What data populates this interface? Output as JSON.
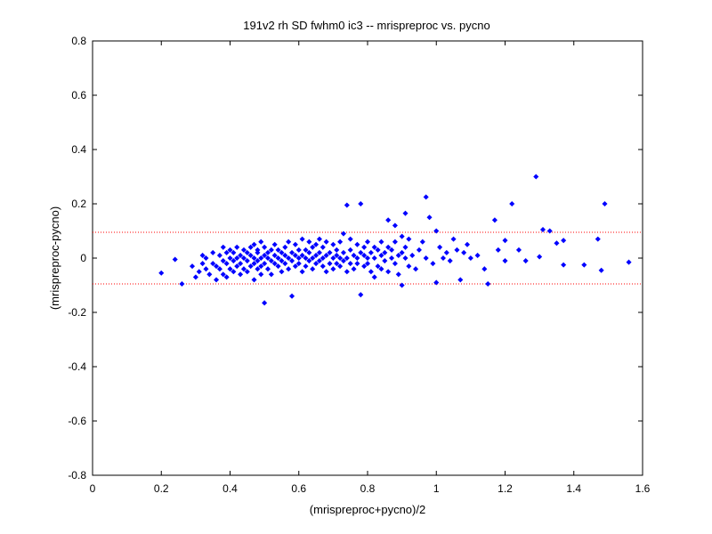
{
  "chart_data": {
    "type": "scatter",
    "title": "191v2 rh SD fwhm0 ic3 -- mrispreproc vs. pycno",
    "xlabel": "(mrispreproc+pycno)/2",
    "ylabel": "(mrispreproc-pycno)",
    "xlim": [
      0,
      1.6
    ],
    "ylim": [
      -0.8,
      0.8
    ],
    "xticks": [
      "0",
      "0.2",
      "0.4",
      "0.6",
      "0.8",
      "1",
      "1.2",
      "1.4",
      "1.6"
    ],
    "yticks": [
      "0.8",
      "0.6",
      "0.4",
      "0.2",
      "0",
      "-0.2",
      "-0.4",
      "-0.6",
      "-0.8"
    ],
    "grid": false,
    "legend": "none",
    "reference_lines": [
      {
        "y": 0.095,
        "style": "dotted",
        "color": "#ff0000"
      },
      {
        "y": -0.095,
        "style": "dotted",
        "color": "#ff0000"
      }
    ],
    "series": [
      {
        "marker": "diamond",
        "color": "#0000ff",
        "points": [
          [
            0.2,
            -0.055
          ],
          [
            0.24,
            -0.005
          ],
          [
            0.26,
            -0.095
          ],
          [
            0.29,
            -0.03
          ],
          [
            0.3,
            -0.07
          ],
          [
            0.31,
            -0.05
          ],
          [
            0.32,
            0.01
          ],
          [
            0.32,
            -0.02
          ],
          [
            0.33,
            0.0
          ],
          [
            0.33,
            -0.04
          ],
          [
            0.34,
            -0.06
          ],
          [
            0.35,
            -0.02
          ],
          [
            0.35,
            0.02
          ],
          [
            0.36,
            -0.03
          ],
          [
            0.36,
            -0.08
          ],
          [
            0.37,
            -0.04
          ],
          [
            0.37,
            0.01
          ],
          [
            0.38,
            -0.01
          ],
          [
            0.38,
            0.04
          ],
          [
            0.38,
            -0.06
          ],
          [
            0.39,
            0.02
          ],
          [
            0.39,
            -0.02
          ],
          [
            0.39,
            -0.07
          ],
          [
            0.4,
            0.0
          ],
          [
            0.4,
            -0.04
          ],
          [
            0.4,
            0.03
          ],
          [
            0.41,
            -0.01
          ],
          [
            0.41,
            -0.05
          ],
          [
            0.41,
            0.02
          ],
          [
            0.42,
            0.0
          ],
          [
            0.42,
            -0.03
          ],
          [
            0.42,
            0.04
          ],
          [
            0.43,
            -0.02
          ],
          [
            0.43,
            0.01
          ],
          [
            0.43,
            -0.06
          ],
          [
            0.44,
            0.0
          ],
          [
            0.44,
            -0.04
          ],
          [
            0.44,
            0.03
          ],
          [
            0.45,
            -0.01
          ],
          [
            0.45,
            0.02
          ],
          [
            0.45,
            -0.05
          ],
          [
            0.46,
            0.01
          ],
          [
            0.46,
            -0.03
          ],
          [
            0.46,
            0.04
          ],
          [
            0.47,
            0.0
          ],
          [
            0.47,
            -0.02
          ],
          [
            0.47,
            0.05
          ],
          [
            0.47,
            -0.08
          ],
          [
            0.48,
            0.02
          ],
          [
            0.48,
            -0.01
          ],
          [
            0.48,
            -0.04
          ],
          [
            0.48,
            0.03
          ],
          [
            0.49,
            0.0
          ],
          [
            0.49,
            -0.03
          ],
          [
            0.49,
            0.06
          ],
          [
            0.49,
            -0.06
          ],
          [
            0.5,
            0.01
          ],
          [
            0.5,
            -0.02
          ],
          [
            0.5,
            0.04
          ],
          [
            0.5,
            -0.165
          ],
          [
            0.51,
            0.0
          ],
          [
            0.51,
            -0.04
          ],
          [
            0.51,
            0.02
          ],
          [
            0.52,
            -0.01
          ],
          [
            0.52,
            0.03
          ],
          [
            0.52,
            -0.06
          ],
          [
            0.53,
            0.01
          ],
          [
            0.53,
            -0.02
          ],
          [
            0.53,
            0.05
          ],
          [
            0.54,
            0.0
          ],
          [
            0.54,
            -0.03
          ],
          [
            0.54,
            0.03
          ],
          [
            0.55,
            0.02
          ],
          [
            0.55,
            -0.01
          ],
          [
            0.55,
            -0.05
          ],
          [
            0.56,
            0.01
          ],
          [
            0.56,
            -0.02
          ],
          [
            0.56,
            0.04
          ],
          [
            0.57,
            0.0
          ],
          [
            0.57,
            -0.04
          ],
          [
            0.57,
            0.06
          ],
          [
            0.58,
            0.02
          ],
          [
            0.58,
            -0.01
          ],
          [
            0.58,
            -0.14
          ],
          [
            0.59,
            0.01
          ],
          [
            0.59,
            -0.03
          ],
          [
            0.59,
            0.05
          ],
          [
            0.6,
            0.0
          ],
          [
            0.6,
            -0.02
          ],
          [
            0.6,
            0.03
          ],
          [
            0.61,
            0.01
          ],
          [
            0.61,
            -0.05
          ],
          [
            0.61,
            0.07
          ],
          [
            0.62,
            0.0
          ],
          [
            0.62,
            0.03
          ],
          [
            0.62,
            -0.03
          ],
          [
            0.63,
            0.02
          ],
          [
            0.63,
            -0.01
          ],
          [
            0.63,
            0.06
          ],
          [
            0.64,
            0.0
          ],
          [
            0.64,
            0.04
          ],
          [
            0.64,
            -0.04
          ],
          [
            0.65,
            0.01
          ],
          [
            0.65,
            -0.02
          ],
          [
            0.65,
            0.05
          ],
          [
            0.66,
            0.02
          ],
          [
            0.66,
            -0.01
          ],
          [
            0.66,
            0.07
          ],
          [
            0.67,
            0.0
          ],
          [
            0.67,
            -0.03
          ],
          [
            0.67,
            0.04
          ],
          [
            0.68,
            0.01
          ],
          [
            0.68,
            -0.05
          ],
          [
            0.68,
            0.06
          ],
          [
            0.69,
            0.02
          ],
          [
            0.69,
            -0.02
          ],
          [
            0.7,
            0.0
          ],
          [
            0.7,
            0.05
          ],
          [
            0.7,
            -0.04
          ],
          [
            0.71,
            0.01
          ],
          [
            0.71,
            0.03
          ],
          [
            0.71,
            -0.02
          ],
          [
            0.72,
            0.0
          ],
          [
            0.72,
            0.06
          ],
          [
            0.72,
            -0.03
          ],
          [
            0.73,
            0.02
          ],
          [
            0.73,
            0.09
          ],
          [
            0.73,
            -0.01
          ],
          [
            0.74,
            0.0
          ],
          [
            0.74,
            0.195
          ],
          [
            0.74,
            -0.05
          ],
          [
            0.75,
            0.03
          ],
          [
            0.75,
            -0.02
          ],
          [
            0.75,
            0.07
          ],
          [
            0.76,
            0.01
          ],
          [
            0.76,
            -0.04
          ],
          [
            0.77,
            0.0
          ],
          [
            0.77,
            0.05
          ],
          [
            0.77,
            -0.02
          ],
          [
            0.78,
            0.02
          ],
          [
            0.78,
            0.2
          ],
          [
            0.78,
            -0.135
          ],
          [
            0.79,
            0.01
          ],
          [
            0.79,
            0.04
          ],
          [
            0.79,
            -0.03
          ],
          [
            0.8,
            0.0
          ],
          [
            0.8,
            0.06
          ],
          [
            0.8,
            -0.02
          ],
          [
            0.81,
            0.02
          ],
          [
            0.81,
            -0.05
          ],
          [
            0.82,
            0.04
          ],
          [
            0.82,
            0.0
          ],
          [
            0.82,
            -0.07
          ],
          [
            0.83,
            0.03
          ],
          [
            0.83,
            -0.03
          ],
          [
            0.84,
            0.01
          ],
          [
            0.84,
            0.06
          ],
          [
            0.84,
            -0.04
          ],
          [
            0.85,
            0.02
          ],
          [
            0.85,
            -0.01
          ],
          [
            0.86,
            0.04
          ],
          [
            0.86,
            -0.05
          ],
          [
            0.86,
            0.14
          ],
          [
            0.87,
            0.0
          ],
          [
            0.87,
            0.03
          ],
          [
            0.88,
            -0.02
          ],
          [
            0.88,
            0.06
          ],
          [
            0.88,
            0.12
          ],
          [
            0.89,
            0.01
          ],
          [
            0.89,
            -0.06
          ],
          [
            0.9,
            0.02
          ],
          [
            0.9,
            -0.1
          ],
          [
            0.9,
            0.08
          ],
          [
            0.91,
            0.0
          ],
          [
            0.91,
            0.04
          ],
          [
            0.91,
            0.165
          ],
          [
            0.92,
            -0.03
          ],
          [
            0.92,
            0.07
          ],
          [
            0.93,
            0.01
          ],
          [
            0.94,
            -0.04
          ],
          [
            0.95,
            0.03
          ],
          [
            0.96,
            0.06
          ],
          [
            0.97,
            0.225
          ],
          [
            0.97,
            0.0
          ],
          [
            0.98,
            0.15
          ],
          [
            0.99,
            -0.02
          ],
          [
            1.0,
            0.1
          ],
          [
            1.0,
            -0.09
          ],
          [
            1.01,
            0.04
          ],
          [
            1.02,
            0.0
          ],
          [
            1.03,
            0.02
          ],
          [
            1.04,
            -0.01
          ],
          [
            1.05,
            0.07
          ],
          [
            1.06,
            0.03
          ],
          [
            1.07,
            -0.08
          ],
          [
            1.08,
            0.02
          ],
          [
            1.09,
            0.05
          ],
          [
            1.1,
            0.0
          ],
          [
            1.12,
            0.01
          ],
          [
            1.14,
            -0.04
          ],
          [
            1.15,
            -0.095
          ],
          [
            1.17,
            0.14
          ],
          [
            1.18,
            0.03
          ],
          [
            1.2,
            0.065
          ],
          [
            1.2,
            -0.01
          ],
          [
            1.22,
            0.2
          ],
          [
            1.24,
            0.03
          ],
          [
            1.26,
            -0.01
          ],
          [
            1.29,
            0.3
          ],
          [
            1.3,
            0.005
          ],
          [
            1.31,
            0.105
          ],
          [
            1.33,
            0.1
          ],
          [
            1.35,
            0.055
          ],
          [
            1.37,
            0.065
          ],
          [
            1.37,
            -0.025
          ],
          [
            1.43,
            -0.025
          ],
          [
            1.47,
            0.07
          ],
          [
            1.48,
            -0.045
          ],
          [
            1.49,
            0.2
          ],
          [
            1.56,
            -0.015
          ]
        ]
      }
    ]
  }
}
